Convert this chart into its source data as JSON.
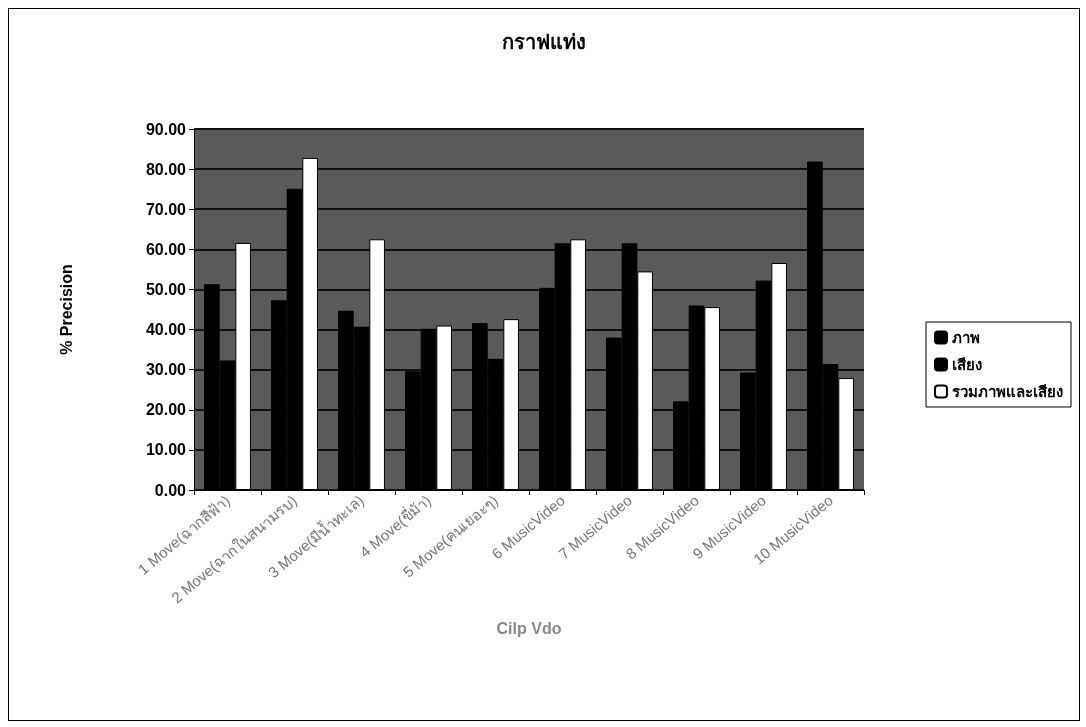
{
  "chart_data": {
    "type": "bar",
    "title": "กราฟแท่ง",
    "xlabel": "Cilp Vdo",
    "ylabel": "% Precision",
    "categories": [
      "1 Move(ฉากสีฟ้า)",
      "2 Move(ฉากในสนามรบ)",
      "3 Move(มีน้ำทะเล)",
      "4 Move(ขี่ม้า)",
      "5 Move(คนเยอะๆ)",
      "6 MusicVideo",
      "7 MusicVideo",
      "8 MusicVideo",
      "9 MusicVideo",
      "10 MusicVideo"
    ],
    "series": [
      {
        "name": "ภาพ",
        "color": "#000000",
        "values": [
          51.3,
          47.3,
          44.7,
          29.6,
          41.6,
          50.4,
          38.0,
          22.1,
          29.3,
          81.9
        ]
      },
      {
        "name": "เสียง",
        "color": "#000000",
        "values": [
          32.3,
          75.1,
          40.7,
          40.2,
          32.7,
          61.5,
          61.5,
          46.0,
          52.2,
          31.4
        ]
      },
      {
        "name": "รวมภาพและเสียง",
        "color": "#ffffff",
        "values": [
          61.6,
          82.8,
          62.5,
          41.0,
          42.6,
          62.5,
          54.5,
          45.6,
          56.6,
          27.9
        ]
      }
    ],
    "ylim": [
      0,
      90
    ],
    "yticks": [
      {
        "value": 0,
        "label": "0.00"
      },
      {
        "value": 10,
        "label": "10.00"
      },
      {
        "value": 20,
        "label": "20.00"
      },
      {
        "value": 30,
        "label": "30.00"
      },
      {
        "value": 40,
        "label": "40.00"
      },
      {
        "value": 50,
        "label": "50.00"
      },
      {
        "value": 60,
        "label": "60.00"
      },
      {
        "value": 70,
        "label": "70.00"
      },
      {
        "value": 80,
        "label": "80.00"
      },
      {
        "value": 90,
        "label": "90.00"
      }
    ],
    "grid": "y",
    "legend": "right"
  }
}
